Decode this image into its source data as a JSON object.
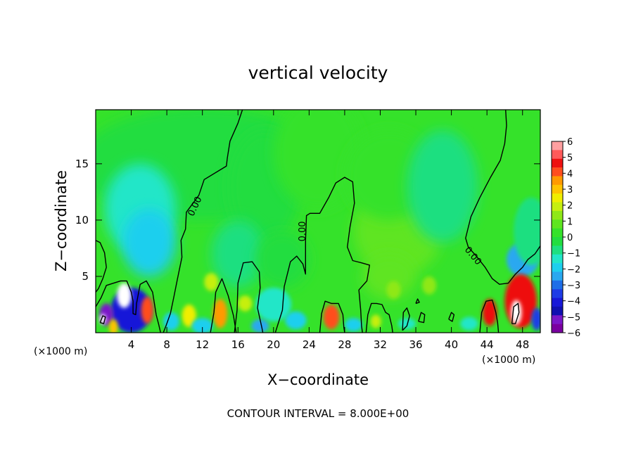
{
  "chart_data": {
    "type": "heatmap",
    "title": "vertical velocity",
    "xlabel": "X−coordinate",
    "ylabel": "Z−coordinate",
    "x_unit_left": "(×1000 m)",
    "x_unit_right": "(×1000 m)",
    "xlim": [
      0,
      50
    ],
    "ylim": [
      0,
      19.8
    ],
    "x_ticks": [
      {
        "v": 4,
        "label": "4"
      },
      {
        "v": 8,
        "label": "8"
      },
      {
        "v": 12,
        "label": "12"
      },
      {
        "v": 16,
        "label": "16"
      },
      {
        "v": 20,
        "label": "20"
      },
      {
        "v": 24,
        "label": "24"
      },
      {
        "v": 28,
        "label": "28"
      },
      {
        "v": 32,
        "label": "32"
      },
      {
        "v": 36,
        "label": "36"
      },
      {
        "v": 40,
        "label": "40"
      },
      {
        "v": 44,
        "label": "44"
      },
      {
        "v": 48,
        "label": "48"
      }
    ],
    "y_ticks": [
      {
        "v": 5,
        "label": "5"
      },
      {
        "v": 10,
        "label": "10"
      },
      {
        "v": 15,
        "label": "15"
      }
    ],
    "contour_labels": [
      {
        "x": 11.2,
        "y": 11.2,
        "label": "0.00",
        "angle": -65
      },
      {
        "x": 23.3,
        "y": 9.0,
        "label": "0.00",
        "angle": -90
      },
      {
        "x": 42.4,
        "y": 6.8,
        "label": "0.00",
        "angle": 50
      }
    ],
    "contour_lines": [
      [
        [
          0,
          8.2
        ],
        [
          0.5,
          8.0
        ],
        [
          1.0,
          7.1
        ],
        [
          1.2,
          5.8
        ],
        [
          0.8,
          4.8
        ],
        [
          0.3,
          3.9
        ],
        [
          0,
          3.6
        ]
      ],
      [
        [
          16.5,
          19.8
        ],
        [
          16.0,
          18.6
        ],
        [
          15.1,
          17.0
        ],
        [
          14.8,
          15.5
        ],
        [
          14.7,
          14.8
        ],
        [
          12.2,
          13.6
        ],
        [
          11.6,
          12.2
        ],
        [
          10.2,
          10.7
        ],
        [
          10.1,
          9.2
        ],
        [
          9.6,
          8.2
        ],
        [
          9.7,
          6.7
        ],
        [
          9.2,
          4.8
        ],
        [
          8.8,
          3.2
        ],
        [
          8.4,
          1.7
        ],
        [
          7.9,
          0.6
        ],
        [
          7.6,
          0
        ]
      ],
      [
        [
          0,
          2.3
        ],
        [
          0.6,
          3.1
        ],
        [
          1.2,
          4.2
        ],
        [
          2.0,
          4.4
        ],
        [
          2.8,
          4.6
        ],
        [
          3.5,
          4.6
        ],
        [
          4.0,
          3.6
        ],
        [
          4.2,
          2.8
        ],
        [
          4.2,
          1.7
        ],
        [
          4.5,
          1.6
        ],
        [
          4.6,
          2.6
        ],
        [
          5.0,
          4.3
        ],
        [
          5.7,
          4.6
        ],
        [
          6.4,
          3.6
        ],
        [
          6.8,
          1.6
        ],
        [
          7.1,
          0.7
        ],
        [
          7.3,
          0
        ]
      ],
      [
        [
          12.9,
          0
        ],
        [
          13.3,
          1.8
        ],
        [
          13.5,
          3.6
        ],
        [
          14.2,
          4.8
        ],
        [
          14.9,
          3.3
        ],
        [
          15.5,
          1.5
        ],
        [
          15.8,
          0
        ]
      ],
      [
        [
          15.6,
          0
        ],
        [
          15.9,
          2.0
        ],
        [
          16.0,
          4.4
        ],
        [
          16.6,
          6.2
        ],
        [
          17.6,
          6.3
        ],
        [
          18.4,
          5.4
        ],
        [
          18.5,
          4.0
        ],
        [
          18.2,
          2.2
        ],
        [
          18.7,
          0.4
        ],
        [
          18.8,
          0
        ]
      ],
      [
        [
          20.2,
          0
        ],
        [
          21.0,
          2.0
        ],
        [
          21.2,
          4.1
        ],
        [
          21.9,
          6.3
        ],
        [
          22.6,
          6.8
        ],
        [
          23.3,
          6.1
        ],
        [
          23.6,
          5.2
        ],
        [
          23.6,
          8.2
        ],
        [
          23.7,
          10.4
        ],
        [
          24.1,
          10.6
        ],
        [
          25.2,
          10.6
        ],
        [
          26.2,
          12.0
        ],
        [
          27.0,
          13.3
        ],
        [
          28.0,
          13.8
        ],
        [
          28.9,
          13.4
        ],
        [
          29.1,
          11.5
        ],
        [
          28.6,
          9.4
        ],
        [
          28.3,
          7.6
        ],
        [
          28.9,
          6.4
        ],
        [
          29.9,
          6.2
        ],
        [
          30.8,
          6.0
        ],
        [
          30.5,
          4.6
        ],
        [
          29.6,
          3.8
        ],
        [
          29.8,
          2.0
        ],
        [
          29.9,
          0.6
        ],
        [
          30.0,
          0
        ]
      ],
      [
        [
          25.2,
          0
        ],
        [
          25.4,
          1.7
        ],
        [
          25.8,
          2.8
        ],
        [
          26.5,
          2.6
        ],
        [
          27.3,
          2.6
        ],
        [
          27.8,
          1.6
        ],
        [
          27.9,
          0.5
        ],
        [
          28.0,
          0
        ]
      ],
      [
        [
          30.4,
          0
        ],
        [
          30.6,
          1.6
        ],
        [
          31.0,
          2.6
        ],
        [
          31.6,
          2.6
        ],
        [
          32.2,
          2.5
        ],
        [
          32.6,
          1.8
        ],
        [
          33.0,
          1.6
        ],
        [
          33.3,
          0.6
        ],
        [
          33.4,
          0
        ]
      ],
      [
        [
          34.5,
          0.2
        ],
        [
          34.6,
          1.8
        ],
        [
          35.0,
          2.2
        ],
        [
          35.3,
          1.5
        ],
        [
          35.0,
          0.6
        ],
        [
          34.5,
          0.2
        ]
      ],
      [
        [
          36.3,
          1.0
        ],
        [
          36.6,
          1.8
        ],
        [
          37.0,
          1.6
        ],
        [
          36.9,
          0.9
        ],
        [
          36.3,
          1.0
        ]
      ],
      [
        [
          39.7,
          1.2
        ],
        [
          40.0,
          1.8
        ],
        [
          40.3,
          1.6
        ],
        [
          40.1,
          1.0
        ],
        [
          39.7,
          1.2
        ]
      ],
      [
        [
          36.0,
          2.6
        ],
        [
          36.2,
          3.0
        ],
        [
          36.4,
          2.7
        ],
        [
          36.0,
          2.6
        ]
      ],
      [
        [
          46.1,
          19.8
        ],
        [
          46.2,
          18.4
        ],
        [
          46.0,
          16.8
        ],
        [
          45.5,
          15.3
        ],
        [
          44.4,
          13.8
        ],
        [
          43.2,
          12.0
        ],
        [
          42.2,
          10.3
        ],
        [
          41.6,
          8.4
        ],
        [
          41.9,
          7.6
        ],
        [
          42.8,
          6.8
        ],
        [
          43.8,
          5.8
        ],
        [
          44.6,
          4.8
        ],
        [
          45.4,
          4.3
        ],
        [
          46.4,
          4.4
        ],
        [
          47.2,
          5.2
        ],
        [
          48.0,
          5.8
        ],
        [
          48.6,
          6.5
        ],
        [
          49.4,
          7.0
        ],
        [
          50,
          7.7
        ]
      ],
      [
        [
          43.2,
          0
        ],
        [
          43.4,
          1.8
        ],
        [
          43.9,
          2.8
        ],
        [
          44.6,
          2.9
        ],
        [
          45.0,
          1.8
        ],
        [
          45.2,
          0.9
        ],
        [
          45.3,
          0
        ]
      ],
      [
        [
          46.8,
          0.8
        ],
        [
          47.0,
          2.3
        ],
        [
          47.5,
          2.6
        ],
        [
          47.6,
          1.8
        ],
        [
          47.2,
          0.8
        ],
        [
          46.8,
          0.8
        ]
      ],
      [
        [
          0.5,
          0.9
        ],
        [
          0.8,
          1.5
        ],
        [
          1.1,
          1.4
        ],
        [
          0.9,
          0.8
        ],
        [
          0.5,
          0.9
        ]
      ]
    ],
    "color_blobs": [
      {
        "x": 12,
        "y": 15,
        "rx": 14,
        "ry": 5,
        "v": -0.3
      },
      {
        "x": 5,
        "y": 11,
        "rx": 4,
        "ry": 4,
        "v": -1.2
      },
      {
        "x": 6,
        "y": 8,
        "rx": 3,
        "ry": 3,
        "v": -1.7
      },
      {
        "x": 19,
        "y": 13,
        "rx": 4,
        "ry": 5,
        "v": -0.4
      },
      {
        "x": 16,
        "y": 7,
        "rx": 3,
        "ry": 3,
        "v": -0.6
      },
      {
        "x": 21,
        "y": 6.5,
        "rx": 3,
        "ry": 2.5,
        "v": -0.5
      },
      {
        "x": 20,
        "y": 2.5,
        "rx": 2,
        "ry": 1.5,
        "v": -1.3
      },
      {
        "x": 25,
        "y": 16,
        "rx": 5,
        "ry": 5,
        "v": 0.35
      },
      {
        "x": 34,
        "y": 9,
        "rx": 5,
        "ry": 4,
        "v": 0.7
      },
      {
        "x": 33,
        "y": 14,
        "rx": 5,
        "ry": 4,
        "v": 0.4
      },
      {
        "x": 33,
        "y": 5,
        "rx": 3,
        "ry": 2,
        "v": 0.8
      },
      {
        "x": 39,
        "y": 13,
        "rx": 4,
        "ry": 5,
        "v": -0.6
      },
      {
        "x": 48,
        "y": 6.5,
        "rx": 1.8,
        "ry": 1.5,
        "v": -2.3
      },
      {
        "x": 49,
        "y": 9,
        "rx": 2,
        "ry": 3,
        "v": -0.9
      },
      {
        "x": 4,
        "y": 2.0,
        "rx": 2.3,
        "ry": 2.0,
        "v": -4.2
      },
      {
        "x": 3.2,
        "y": 3.3,
        "rx": 0.8,
        "ry": 1.1,
        "v": -6.5
      },
      {
        "x": 1.2,
        "y": 1.6,
        "rx": 0.8,
        "ry": 1.0,
        "v": -5.2
      },
      {
        "x": 0.8,
        "y": 1.2,
        "rx": 0.35,
        "ry": 0.45,
        "v": -6.5
      },
      {
        "x": 2.0,
        "y": 0.5,
        "rx": 0.5,
        "ry": 0.7,
        "v": 3.0
      },
      {
        "x": 5.8,
        "y": 2.0,
        "rx": 0.7,
        "ry": 1.2,
        "v": 4.2
      },
      {
        "x": 10.5,
        "y": 1.5,
        "rx": 0.8,
        "ry": 1.0,
        "v": 2.2
      },
      {
        "x": 14.0,
        "y": 1.7,
        "rx": 0.8,
        "ry": 1.3,
        "v": 3.8
      },
      {
        "x": 13.0,
        "y": 4.5,
        "rx": 0.8,
        "ry": 0.8,
        "v": 2.0
      },
      {
        "x": 16.8,
        "y": 2.6,
        "rx": 0.8,
        "ry": 0.7,
        "v": 1.8
      },
      {
        "x": 26.5,
        "y": 1.4,
        "rx": 0.9,
        "ry": 1.1,
        "v": 4.2
      },
      {
        "x": 31.5,
        "y": 1.0,
        "rx": 0.6,
        "ry": 0.6,
        "v": 1.9
      },
      {
        "x": 33.5,
        "y": 3.8,
        "rx": 0.8,
        "ry": 0.8,
        "v": 1.6
      },
      {
        "x": 37.5,
        "y": 4.2,
        "rx": 0.8,
        "ry": 0.8,
        "v": 1.5
      },
      {
        "x": 44.3,
        "y": 1.8,
        "rx": 0.8,
        "ry": 1.2,
        "v": 4.8
      },
      {
        "x": 47.8,
        "y": 2.8,
        "rx": 1.8,
        "ry": 2.4,
        "v": 4.6
      },
      {
        "x": 47.3,
        "y": 1.8,
        "rx": 0.6,
        "ry": 1.1,
        "v": 6.8
      },
      {
        "x": 49.6,
        "y": 1.2,
        "rx": 0.6,
        "ry": 1.0,
        "v": -3.5
      },
      {
        "x": 12,
        "y": 0.6,
        "rx": 1.2,
        "ry": 0.7,
        "v": -1.8
      },
      {
        "x": 18.5,
        "y": 0.6,
        "rx": 1.0,
        "ry": 0.6,
        "v": -2.2
      },
      {
        "x": 22.5,
        "y": 1.1,
        "rx": 1.2,
        "ry": 0.8,
        "v": -2.0
      },
      {
        "x": 29,
        "y": 0.7,
        "rx": 1.0,
        "ry": 0.6,
        "v": -1.8
      },
      {
        "x": 35,
        "y": 0.8,
        "rx": 1.0,
        "ry": 0.5,
        "v": -1.6
      },
      {
        "x": 42,
        "y": 0.8,
        "rx": 1.0,
        "ry": 0.6,
        "v": -1.5
      },
      {
        "x": 8.5,
        "y": 1.0,
        "rx": 0.9,
        "ry": 0.8,
        "v": -1.7
      }
    ],
    "colorbar": {
      "min": -6,
      "max": 6,
      "labels": [
        "6",
        "5",
        "4",
        "3",
        "2",
        "1",
        "0",
        "−1",
        "−2",
        "−3",
        "−4",
        "−5",
        "−6"
      ],
      "colors": [
        "#ff9fa0",
        "#ff5a5a",
        "#ee1111",
        "#ff4e1e",
        "#ff9a00",
        "#ffc400",
        "#f0ee00",
        "#c6ef10",
        "#8fe818",
        "#5ee520",
        "#35e22a",
        "#22dd40",
        "#1edf80",
        "#22e6c8",
        "#1ecfee",
        "#2aa8f0",
        "#1e6ee8",
        "#1e3ce6",
        "#1818d8",
        "#1010b0",
        "#7a18c8",
        "#7a00a0"
      ]
    },
    "contour_interval_text": "CONTOUR INTERVAL =  8.000E+00"
  }
}
